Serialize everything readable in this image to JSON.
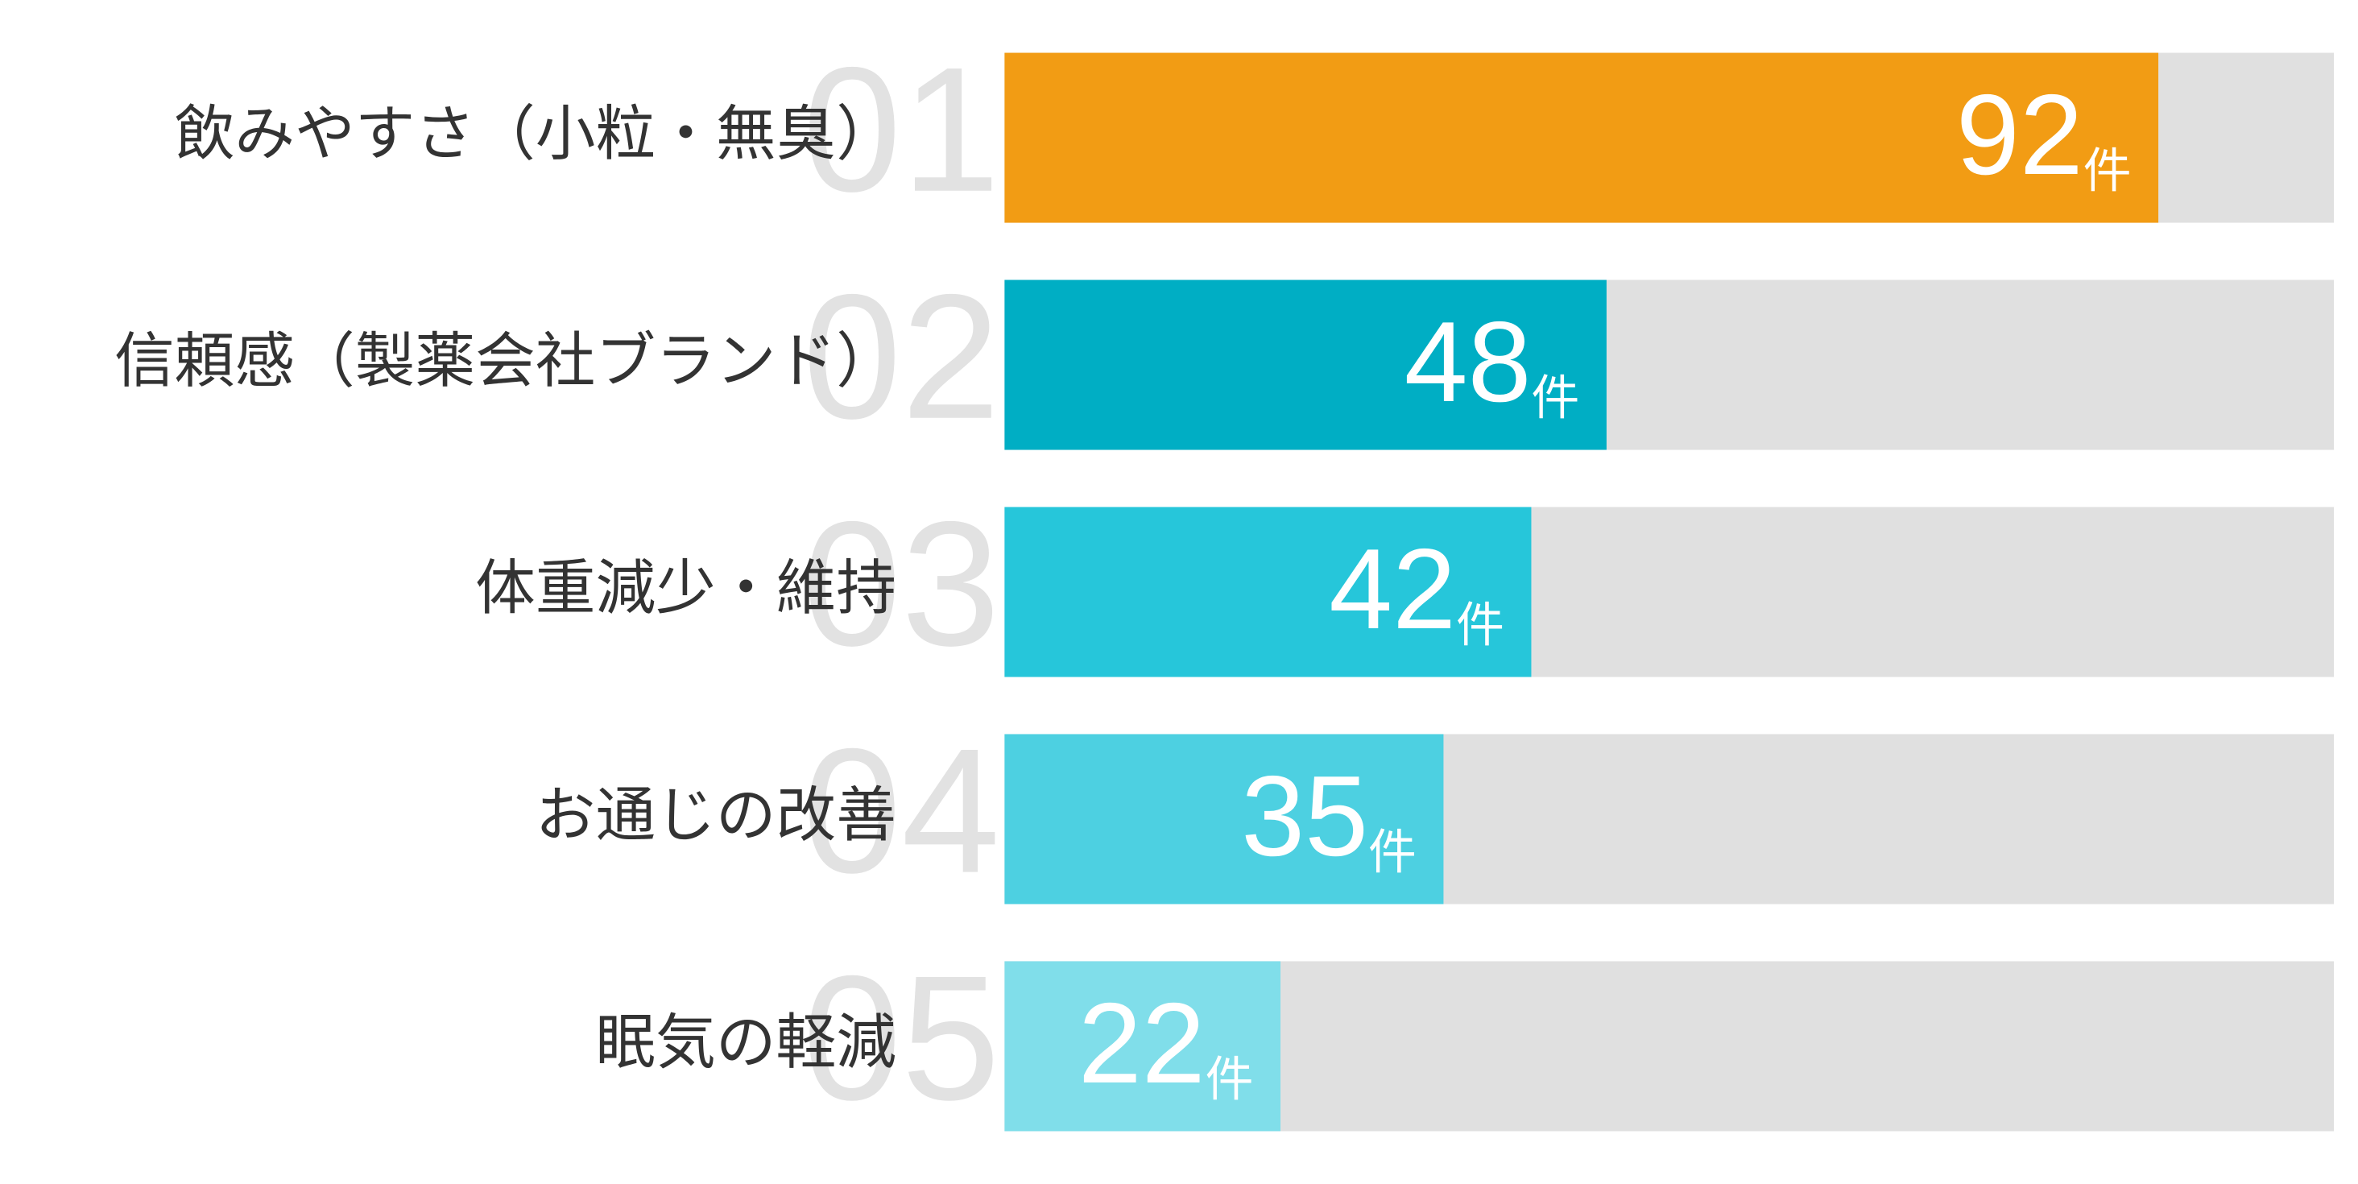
{
  "chart_data": {
    "type": "bar",
    "orientation": "horizontal",
    "ranks": [
      "01",
      "02",
      "03",
      "04",
      "05"
    ],
    "categories": [
      "飲みやすさ（小粒・無臭）",
      "信頼感（製薬会社ブランド）",
      "体重減少・維持",
      "お通じの改善",
      "眠気の軽減"
    ],
    "values": [
      92,
      48,
      42,
      35,
      22
    ],
    "unit": "件",
    "colors": [
      "#f29c14",
      "#00aec4",
      "#26c6da",
      "#4dd0e1",
      "#80deea"
    ],
    "track_color": "#e0e0e0",
    "xlim": [
      0,
      106
    ]
  }
}
